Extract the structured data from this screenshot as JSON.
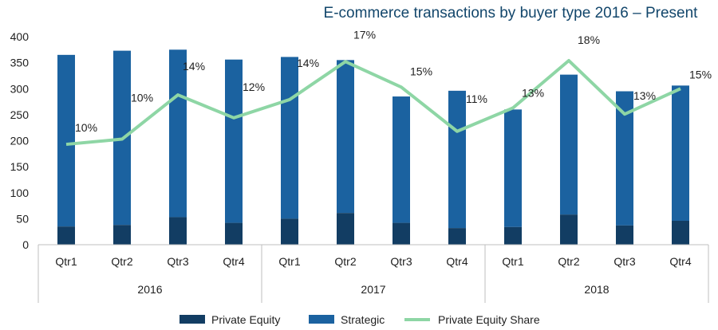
{
  "chart_data": {
    "type": "bar",
    "title": "E-commerce transactions by buyer type 2016 – Present",
    "stacked": true,
    "ylim": [
      0,
      400
    ],
    "yticks": [
      0,
      50,
      100,
      150,
      200,
      250,
      300,
      350,
      400
    ],
    "groups": [
      {
        "label": "2016",
        "categories": [
          "Qtr1",
          "Qtr2",
          "Qtr3",
          "Qtr4"
        ]
      },
      {
        "label": "2017",
        "categories": [
          "Qtr1",
          "Qtr2",
          "Qtr3",
          "Qtr4"
        ]
      },
      {
        "label": "2018",
        "categories": [
          "Qtr1",
          "Qtr2",
          "Qtr3",
          "Qtr4"
        ]
      }
    ],
    "categories": [
      "Qtr1",
      "Qtr2",
      "Qtr3",
      "Qtr4",
      "Qtr1",
      "Qtr2",
      "Qtr3",
      "Qtr4",
      "Qtr1",
      "Qtr2",
      "Qtr3",
      "Qtr4"
    ],
    "series": [
      {
        "name": "Private Equity",
        "color": "#123d63",
        "values": [
          35,
          38,
          53,
          42,
          50,
          61,
          42,
          32,
          34,
          58,
          37,
          46
        ]
      },
      {
        "name": "Strategic",
        "color": "#1b62a0",
        "values": [
          330,
          335,
          322,
          314,
          311,
          294,
          243,
          264,
          226,
          269,
          258,
          260
        ]
      }
    ],
    "line_series": {
      "name": "Private Equity Share",
      "color": "#8ed6a5",
      "line_values": [
        193,
        203,
        288,
        244,
        279,
        352,
        303,
        218,
        263,
        354,
        251,
        300
      ],
      "labels": [
        "10%",
        "10%",
        "14%",
        "12%",
        "14%",
        "17%",
        "15%",
        "11%",
        "13%",
        "18%",
        "13%",
        "15%"
      ]
    },
    "legend": [
      "Private Equity",
      "Strategic",
      "Private Equity Share"
    ],
    "legend_position": "bottom"
  }
}
